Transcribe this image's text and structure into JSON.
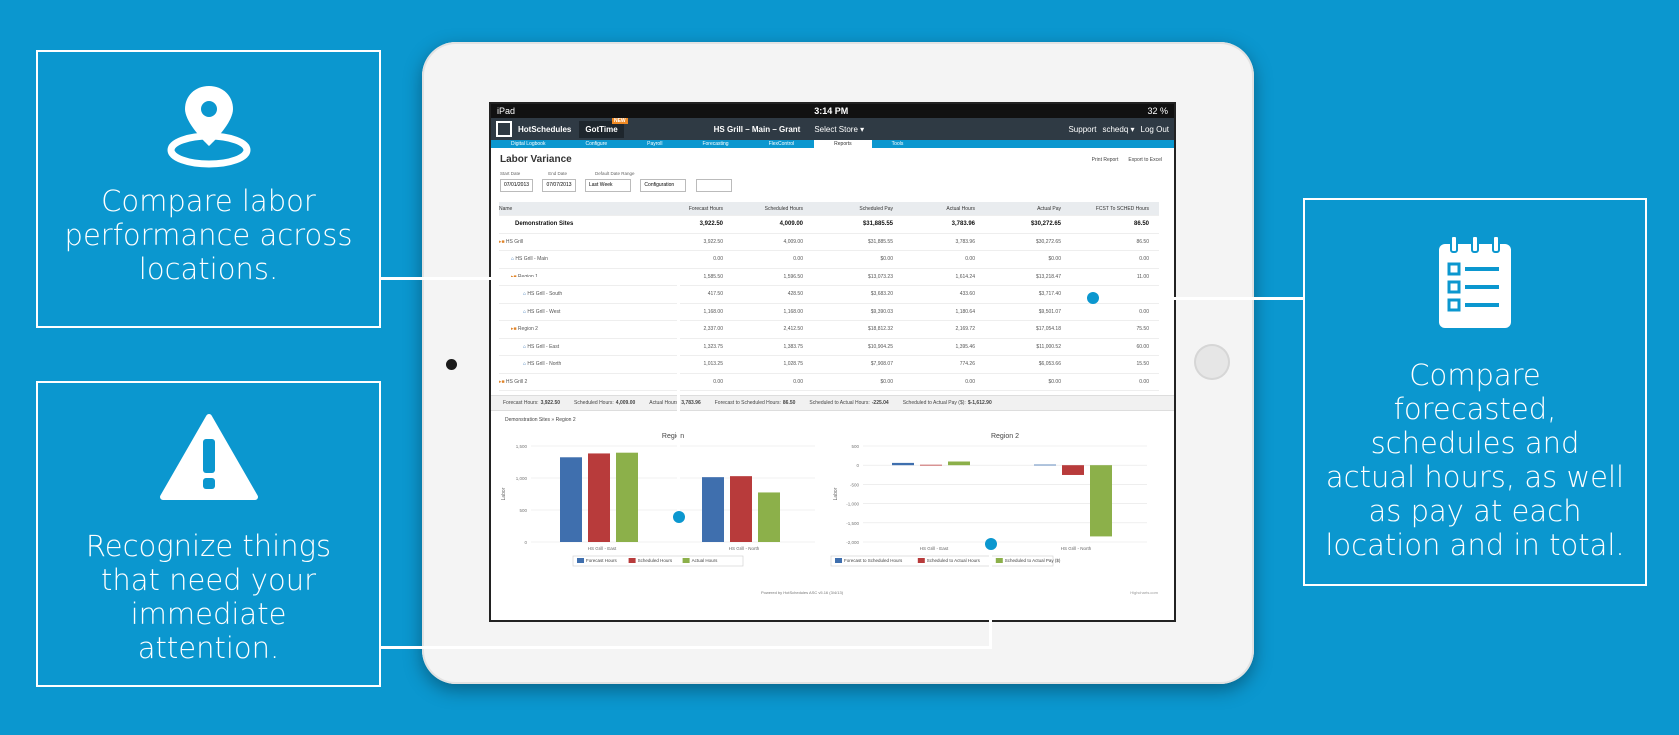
{
  "callouts": {
    "locations": {
      "text": "Compare labor performance across locations.",
      "icon": "map-pin-icon"
    },
    "attention": {
      "text": "Recognize things that need your immediate attention.",
      "icon": "warning-icon"
    },
    "compare": {
      "text": "Compare forecasted, schedules and actual hours, as well as pay at each location and in total.",
      "icon": "checklist-icon"
    }
  },
  "status": {
    "device": "iPad",
    "time": "3:14 PM",
    "battery": "32 %"
  },
  "app": {
    "brand": "HotSchedules",
    "gotime": "GotTime",
    "gotime_tag": "NEW",
    "store": "HS Grill – Main – Grant",
    "select_store": "Select Store ▾",
    "support": "Support",
    "user": "schedq ▾",
    "logout": "Log Out",
    "nav": [
      "Digital Logbook",
      "Configure",
      "Payroll",
      "Forecasting",
      "FlexControl",
      "Reports",
      "Tools"
    ],
    "active_tab": "Reports"
  },
  "report": {
    "title": "Labor Variance",
    "print": "Print Report",
    "export": "Export to Excel",
    "start_label": "Start Date",
    "start_value": "07/01/2013",
    "end_label": "End Date",
    "end_value": "07/07/2013",
    "range_label": "Default Date Range",
    "range_value": "Last Week",
    "config_value": "Configuration"
  },
  "table": {
    "headers": [
      "Name",
      "Forecast Hours",
      "Scheduled Hours",
      "Scheduled Pay",
      "Actual Hours",
      "Actual Pay",
      "FCST To SCHED Hours"
    ],
    "rows": [
      {
        "name": "Demonstration Sites",
        "level": 0,
        "kind": "total",
        "vals": [
          "3,922.50",
          "4,009.00",
          "$31,885.55",
          "3,783.96",
          "$30,272.65",
          "86.50"
        ]
      },
      {
        "name": "HS Grill",
        "level": 0,
        "kind": "group",
        "vals": [
          "3,922.50",
          "4,009.00",
          "$31,885.55",
          "3,783.96",
          "$30,272.65",
          "86.50"
        ]
      },
      {
        "name": "HS Grill - Main",
        "level": 1,
        "kind": "store",
        "vals": [
          "0.00",
          "0.00",
          "$0.00",
          "0.00",
          "$0.00",
          "0.00"
        ]
      },
      {
        "name": "Region 1",
        "level": 1,
        "kind": "group",
        "vals": [
          "1,585.50",
          "1,596.50",
          "$13,073.23",
          "1,614.24",
          "$13,218.47",
          "11.00"
        ]
      },
      {
        "name": "HS Grill - South",
        "level": 2,
        "kind": "store",
        "vals": [
          "417.50",
          "428.50",
          "$3,683.20",
          "433.60",
          "$3,717.40",
          ""
        ]
      },
      {
        "name": "HS Grill - West",
        "level": 2,
        "kind": "store",
        "vals": [
          "1,168.00",
          "1,168.00",
          "$9,390.03",
          "1,180.64",
          "$9,501.07",
          "0.00"
        ]
      },
      {
        "name": "Region 2",
        "level": 1,
        "kind": "group",
        "vals": [
          "2,337.00",
          "2,412.50",
          "$18,812.32",
          "2,169.72",
          "$17,054.18",
          "75.50"
        ]
      },
      {
        "name": "HS Grill - East",
        "level": 2,
        "kind": "store",
        "vals": [
          "1,323.75",
          "1,383.75",
          "$10,904.25",
          "1,395.46",
          "$11,000.52",
          "60.00"
        ]
      },
      {
        "name": "HS Grill - North",
        "level": 2,
        "kind": "store",
        "vals": [
          "1,013.25",
          "1,028.75",
          "$7,908.07",
          "774.26",
          "$6,053.66",
          "15.50"
        ]
      },
      {
        "name": "HS Grill 2",
        "level": 0,
        "kind": "group",
        "vals": [
          "0.00",
          "0.00",
          "$0.00",
          "0.00",
          "$0.00",
          "0.00"
        ]
      },
      {
        "name": "HS Grill 3",
        "level": 1,
        "kind": "store",
        "vals": [
          "0.00",
          "0.00",
          "$0.00",
          "0.00",
          "$0.00",
          "0.00"
        ]
      }
    ]
  },
  "summary": [
    {
      "label": "Forecast Hours:",
      "value": "3,922.50"
    },
    {
      "label": "Scheduled Hours:",
      "value": "4,009.00"
    },
    {
      "label": "Actual Hours:",
      "value": "3,783.96"
    },
    {
      "label": "Forecast to Scheduled Hours:",
      "value": "86.50"
    },
    {
      "label": "Scheduled to Actual Hours:",
      "value": "-225.04"
    },
    {
      "label": "Scheduled to Actual Pay ($):",
      "value": "$-1,612.90"
    }
  ],
  "breadcrumb": {
    "root": "Demonstration Sites",
    "sep": "»",
    "current": "Region 2"
  },
  "colors": {
    "blue": "#3f6fae",
    "red": "#b83b3b",
    "green": "#8cb04a",
    "bg": "#0b97cf"
  },
  "chart_data": [
    {
      "type": "bar",
      "title": "Region",
      "ylabel": "Labor",
      "ylim": [
        0,
        1500
      ],
      "yticks": [
        "1,500",
        "1,000",
        "500",
        "0"
      ],
      "categories": [
        "HS Grill - East",
        "HS Grill - North"
      ],
      "series": [
        {
          "name": "Forecast Hours",
          "values": [
            1323.75,
            1013.25
          ]
        },
        {
          "name": "Scheduled Hours",
          "values": [
            1383.75,
            1028.75
          ]
        },
        {
          "name": "Actual Hours",
          "values": [
            1395.46,
            774.26
          ]
        }
      ],
      "legend": "bottom"
    },
    {
      "type": "bar",
      "title": "Region 2",
      "ylabel": "Labor",
      "ylim": [
        -2000,
        500
      ],
      "yticks": [
        "500",
        "0",
        "-500",
        "-1,000",
        "-1,500",
        "-2,000"
      ],
      "categories": [
        "HS Grill - East",
        "HS Grill - North"
      ],
      "series": [
        {
          "name": "Forecast to Scheduled Hours",
          "values": [
            60,
            15.5
          ]
        },
        {
          "name": "Scheduled to Actual Hours",
          "values": [
            11.71,
            -254.49
          ]
        },
        {
          "name": "Scheduled to Actual Pay ($)",
          "values": [
            96.27,
            -1854.41
          ]
        }
      ],
      "legend": "bottom"
    }
  ],
  "footer": {
    "powered": "Powered by HotSchedules ASC v5.16 (3/4/13)",
    "credit": "Highcharts.com"
  }
}
